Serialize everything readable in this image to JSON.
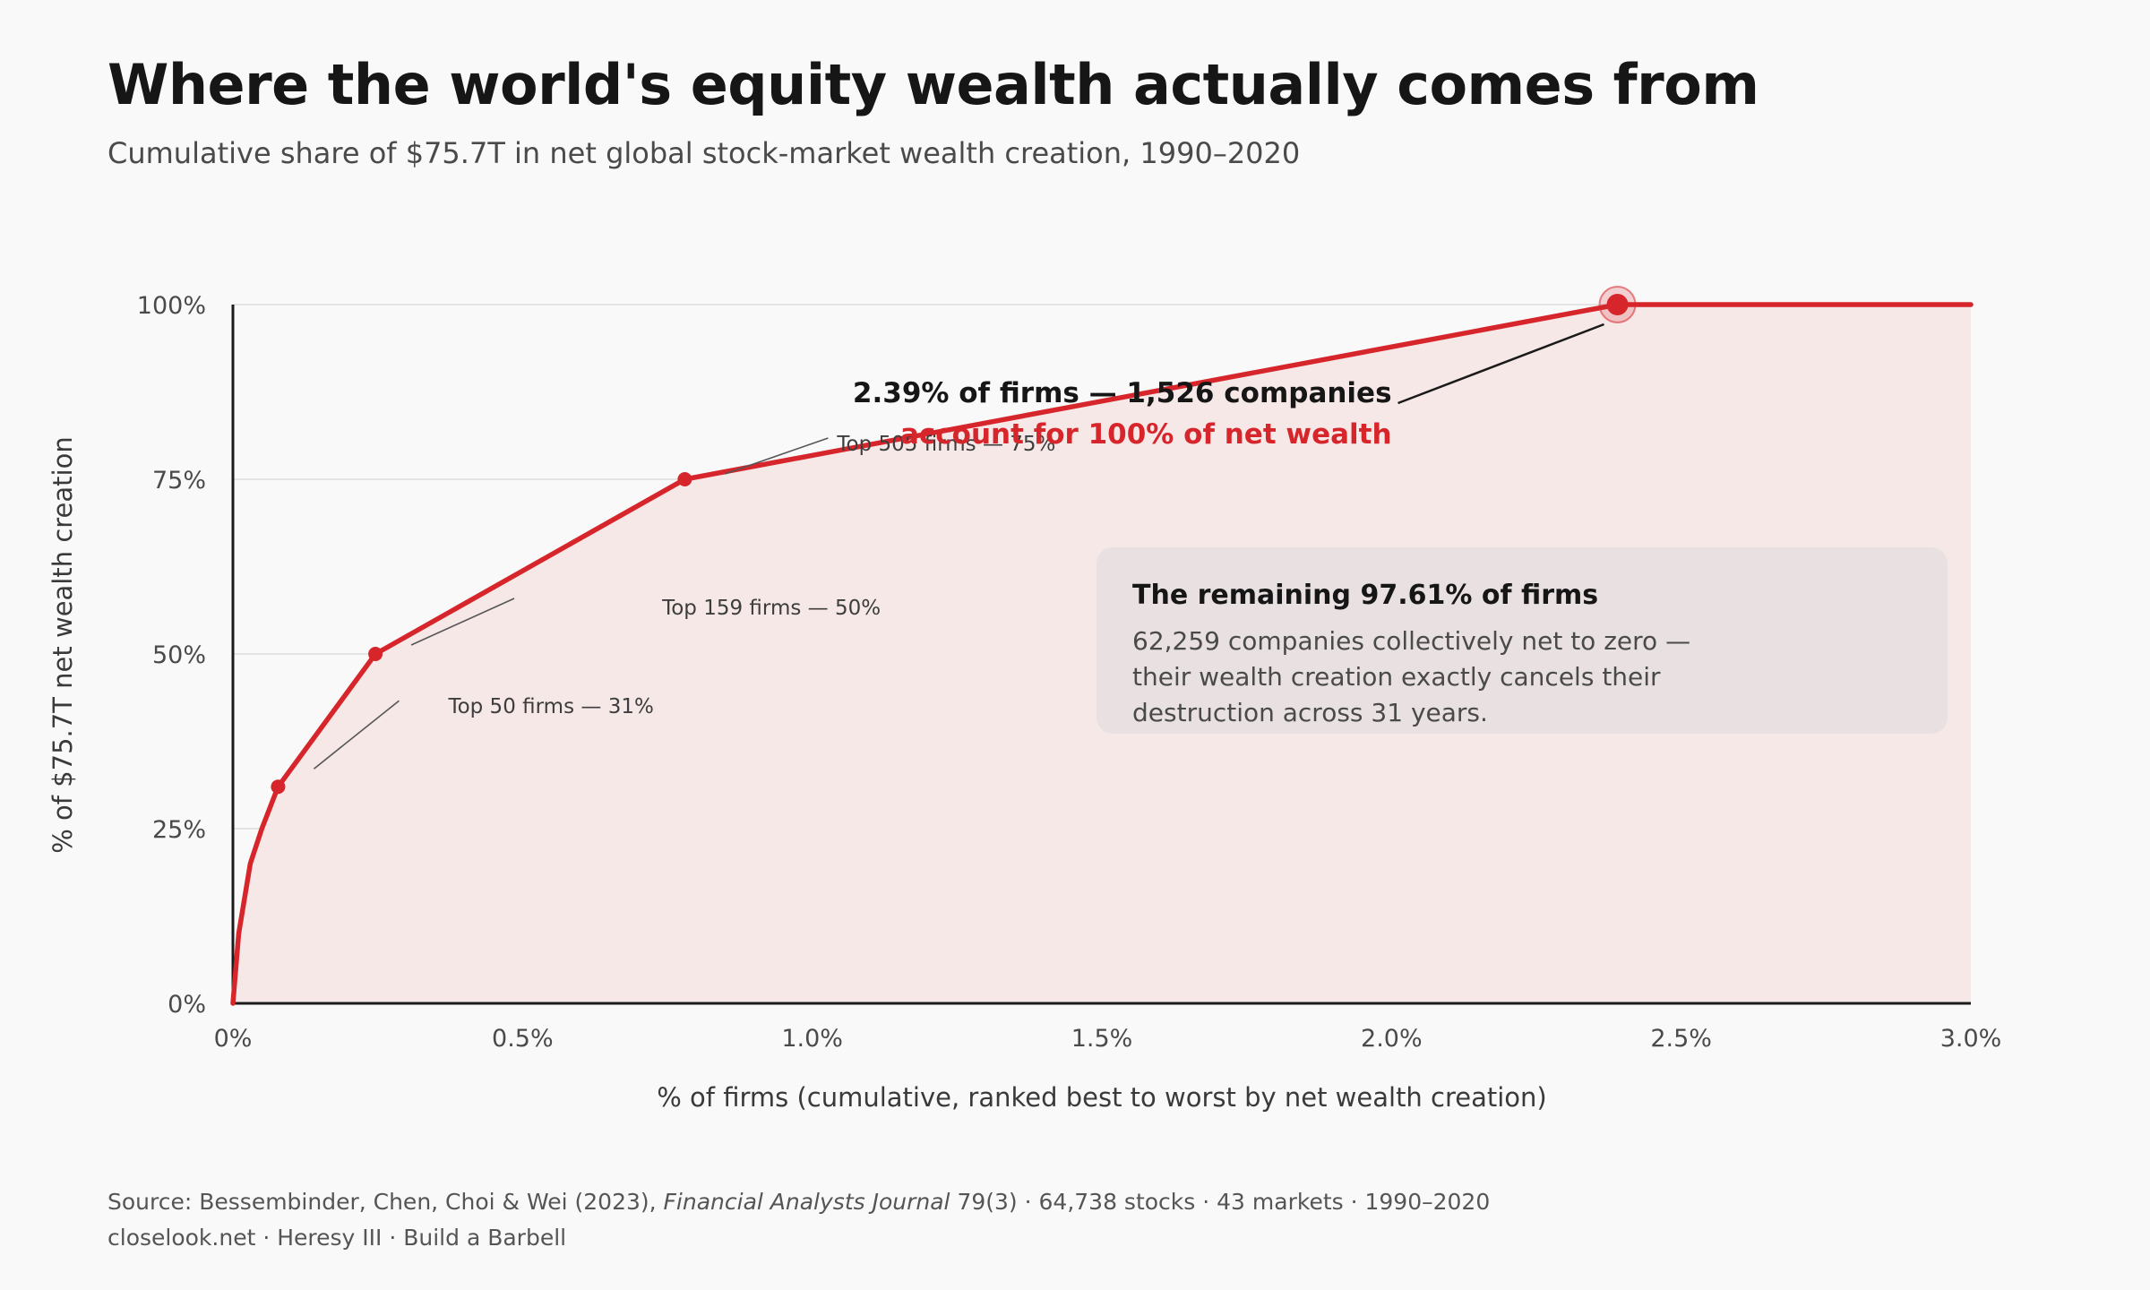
{
  "header": {
    "title": "Where the world's equity wealth actually comes from",
    "subtitle": "Cumulative share of $75.7T in net global stock-market wealth creation, 1990–2020"
  },
  "chart_data": {
    "type": "area",
    "xlabel": "% of firms (cumulative, ranked best to worst by net wealth creation)",
    "ylabel": "% of $75.7T net wealth creation",
    "xlim": [
      0,
      3
    ],
    "ylim": [
      0,
      100
    ],
    "x_ticks": [
      "0%",
      "0.5%",
      "1.0%",
      "1.5%",
      "2.0%",
      "2.5%",
      "3.0%"
    ],
    "y_ticks": [
      "0%",
      "25%",
      "50%",
      "75%",
      "100%"
    ],
    "grid": true,
    "series": [
      {
        "color": "#d7262b",
        "x": [
          0,
          0.01,
          0.03,
          0.05,
          0.078,
          0.246,
          0.78,
          2.39,
          3.0
        ],
        "y": [
          0,
          10,
          20,
          25,
          31,
          50,
          75,
          100,
          100
        ]
      }
    ],
    "markers": [
      {
        "x": 0.078,
        "y": 31,
        "label": "Top 50 firms — 31%"
      },
      {
        "x": 0.246,
        "y": 50,
        "label": "Top 159 firms — 50%"
      },
      {
        "x": 0.78,
        "y": 75,
        "label": "Top 505 firms — 75%"
      },
      {
        "x": 2.39,
        "y": 100,
        "label": ""
      }
    ],
    "callout": {
      "line1": "2.39% of firms — 1,526 companies",
      "line2": "account for 100% of net wealth"
    }
  },
  "info_box": {
    "title": "The remaining 97.61% of firms",
    "body": "62,259 companies collectively net to zero — their wealth creation exactly cancels their destruction across 31 years."
  },
  "footer": {
    "source_prefix": "Source: Bessembinder, Chen, Choi & Wei (2023), ",
    "journal": "Financial Analysts Journal",
    "source_suffix": " 79(3) · 64,738 stocks · 43 markets · 1990–2020",
    "credit": "closelook.net · Heresy III · Build a Barbell"
  },
  "colors": {
    "accent": "#d7262b",
    "fill": "#f7e8e8",
    "text": "#161616"
  }
}
